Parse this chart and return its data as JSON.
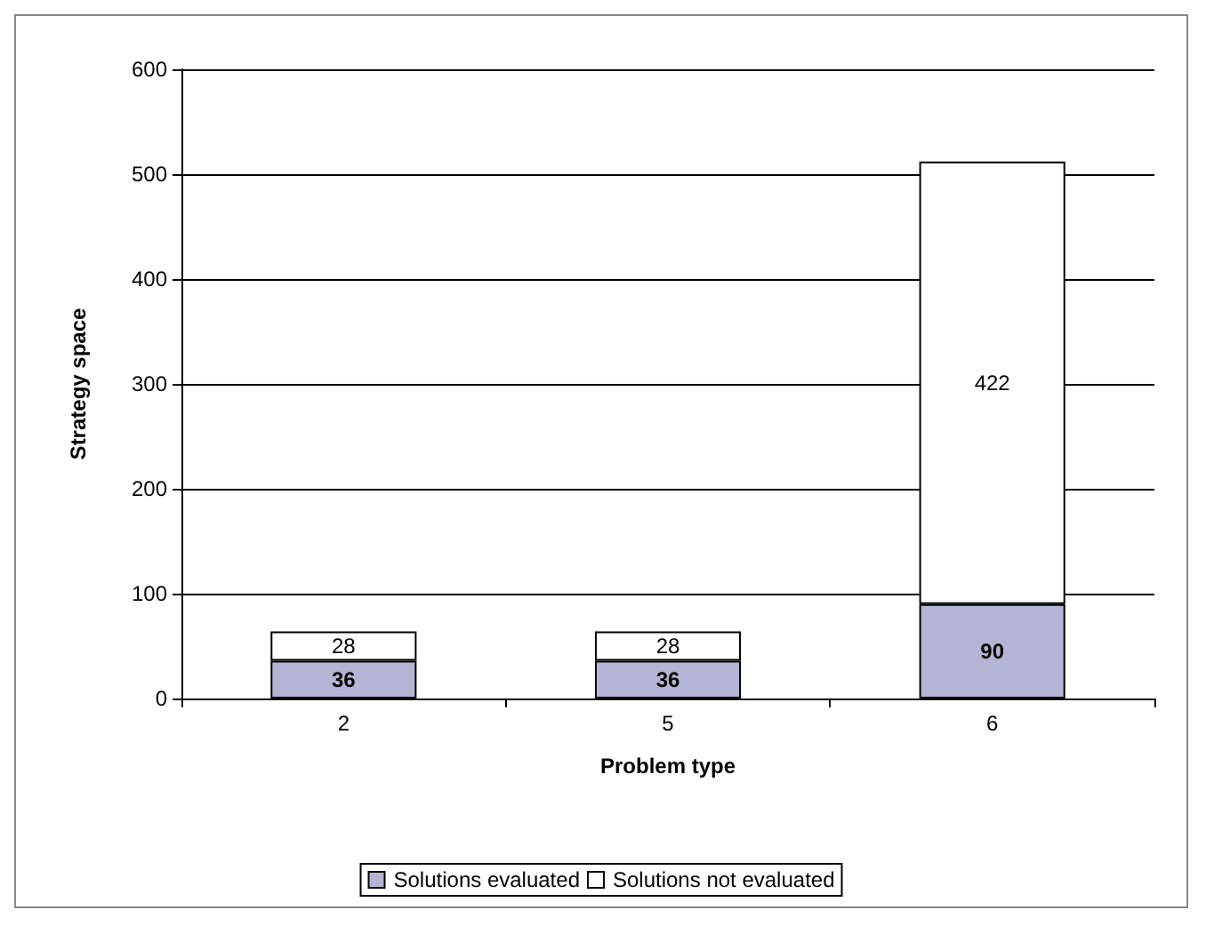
{
  "chart_data": {
    "type": "bar",
    "stacked": true,
    "xlabel": "Problem type",
    "ylabel": "Strategy space",
    "categories": [
      "2",
      "5",
      "6"
    ],
    "series": [
      {
        "name": "Solutions evaluated",
        "color": "#b4b4d4",
        "values": [
          36,
          36,
          90
        ]
      },
      {
        "name": "Solutions not evaluated",
        "color": "#ffffff",
        "values": [
          28,
          28,
          422
        ]
      }
    ],
    "ylim": [
      0,
      600
    ],
    "yticks": [
      0,
      100,
      200,
      300,
      400,
      500,
      600
    ],
    "grid": "y",
    "legend": "bottom",
    "data_labels": true
  }
}
